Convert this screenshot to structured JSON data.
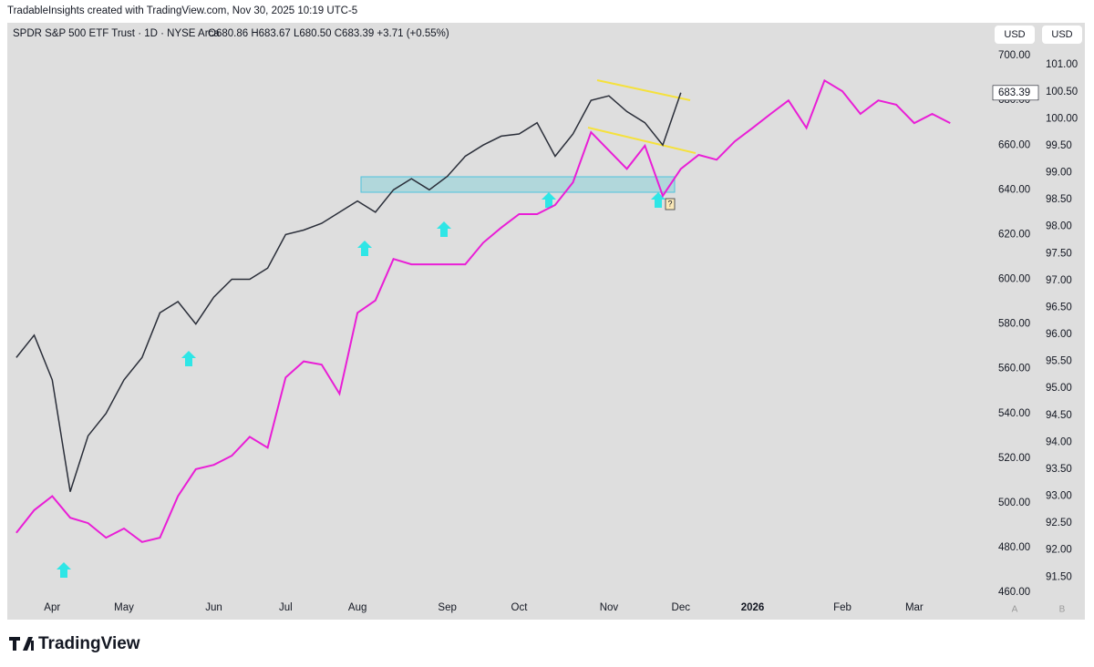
{
  "header": {
    "watermark": "TradableInsights created with TradingView.com, Nov 30, 2025 10:19 UTC-5",
    "symbol_info": "SPDR S&P 500 ETF Trust · 1D · NYSE Arca",
    "ohlc": "O680.86 H683.67 L680.50 C683.39 +3.71 (+0.55%)",
    "currency_labels": [
      "USD",
      "USD"
    ]
  },
  "footer": {
    "brand": "TradingView",
    "scale_buttons": [
      "A",
      "B"
    ]
  },
  "marker": "?",
  "chart_data": {
    "type": "line",
    "categories": [
      null,
      null,
      "Apr",
      null,
      null,
      null,
      "May",
      null,
      null,
      null,
      null,
      "Jun",
      null,
      null,
      null,
      "Jul",
      null,
      null,
      null,
      "Aug",
      null,
      null,
      null,
      null,
      "Sep",
      null,
      null,
      null,
      "Oct",
      null,
      null,
      null,
      null,
      "Nov",
      null,
      null,
      null,
      "Dec",
      null,
      null,
      null,
      "2026",
      null,
      null,
      null,
      null,
      "Feb",
      null,
      null,
      null,
      "Mar",
      null,
      null
    ],
    "series": [
      {
        "color": "#2a2e39",
        "values": [
          565,
          575,
          555,
          505,
          530,
          540,
          555,
          565,
          585,
          590,
          580,
          592,
          600,
          600,
          605,
          620,
          622,
          625,
          630,
          635,
          630,
          640,
          645,
          640,
          646,
          655,
          660,
          664,
          665,
          670,
          655,
          665,
          680,
          682,
          675,
          670,
          660,
          683.39,
          null,
          null,
          null,
          null,
          null,
          null,
          null,
          null,
          null,
          null,
          null,
          null,
          null,
          null,
          null
        ]
      },
      {
        "color": "#e91ed6",
        "axis": "y2",
        "values": [
          92.32,
          92.74,
          93.0,
          92.6,
          92.5,
          92.23,
          92.4,
          92.15,
          92.23,
          93.0,
          93.5,
          93.58,
          93.75,
          94.1,
          93.9,
          95.2,
          95.5,
          95.44,
          94.9,
          96.4,
          96.63,
          97.4,
          97.3,
          97.3,
          97.3,
          97.3,
          97.7,
          97.98,
          98.23,
          98.23,
          98.4,
          98.82,
          99.75,
          99.41,
          99.07,
          99.5,
          98.57,
          99.07,
          99.33,
          99.24,
          99.58,
          99.83,
          100.09,
          100.34,
          99.83,
          100.71,
          100.51,
          100.09,
          100.34,
          100.26,
          99.92,
          100.09,
          99.92
        ]
      }
    ],
    "ylim": [
      447.8,
      714.7
    ],
    "yticks": [
      {
        "value": 460,
        "label": "460.00"
      },
      {
        "value": 480,
        "label": "480.00"
      },
      {
        "value": 500,
        "label": "500.00"
      },
      {
        "value": 520,
        "label": "520.00"
      },
      {
        "value": 540,
        "label": "540.00"
      },
      {
        "value": 560,
        "label": "560.00"
      },
      {
        "value": 580,
        "label": "580.00"
      },
      {
        "value": 600,
        "label": "600.00"
      },
      {
        "value": 620,
        "label": "620.00"
      },
      {
        "value": 640,
        "label": "640.00"
      },
      {
        "value": 660,
        "label": "660.00"
      },
      {
        "value": 680,
        "label": "680.00"
      },
      {
        "value": 700,
        "label": "700.00"
      }
    ],
    "y2lim": [
      90.71,
      101.78
    ],
    "y2ticks": [
      {
        "value": 91.5,
        "label": "91.50"
      },
      {
        "value": 92,
        "label": "92.00"
      },
      {
        "value": 92.5,
        "label": "92.50"
      },
      {
        "value": 93,
        "label": "93.00"
      },
      {
        "value": 93.5,
        "label": "93.50"
      },
      {
        "value": 94,
        "label": "94.00"
      },
      {
        "value": 94.5,
        "label": "94.50"
      },
      {
        "value": 95,
        "label": "95.00"
      },
      {
        "value": 95.5,
        "label": "95.50"
      },
      {
        "value": 96,
        "label": "96.00"
      },
      {
        "value": 96.5,
        "label": "96.50"
      },
      {
        "value": 97,
        "label": "97.00"
      },
      {
        "value": 97.5,
        "label": "97.50"
      },
      {
        "value": 98,
        "label": "98.00"
      },
      {
        "value": 98.5,
        "label": "98.50"
      },
      {
        "value": 99,
        "label": "99.00"
      },
      {
        "value": 99.5,
        "label": "99.50"
      },
      {
        "value": 100,
        "label": "100.00"
      },
      {
        "value": 100.5,
        "label": "100.50"
      },
      {
        "value": 101,
        "label": "101.00"
      }
    ],
    "grid": false
  }
}
